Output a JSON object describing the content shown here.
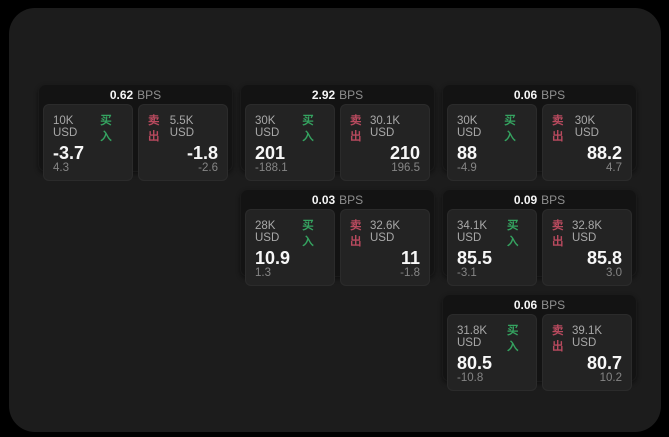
{
  "colors": {
    "panel": "#1c1c1c",
    "card": "#131313",
    "tile": "#232323",
    "buy": "#35a360",
    "sell": "#b84a5e"
  },
  "labels": {
    "bps": "BPS",
    "buy": "买入",
    "sell": "卖出"
  },
  "cards": [
    {
      "bps": "0.62",
      "buy": {
        "amount": "10K USD",
        "value": "-3.7",
        "sub": "4.3"
      },
      "sell": {
        "amount": "5.5K USD",
        "value": "-1.8",
        "sub": "-2.6"
      }
    },
    {
      "bps": "2.92",
      "buy": {
        "amount": "30K USD",
        "value": "201",
        "sub": "-188.1"
      },
      "sell": {
        "amount": "30.1K USD",
        "value": "210",
        "sub": "196.5"
      }
    },
    {
      "bps": "0.06",
      "buy": {
        "amount": "30K USD",
        "value": "88",
        "sub": "-4.9"
      },
      "sell": {
        "amount": "30K USD",
        "value": "88.2",
        "sub": "4.7"
      }
    },
    {
      "bps": "0.03",
      "buy": {
        "amount": "28K USD",
        "value": "10.9",
        "sub": "1.3"
      },
      "sell": {
        "amount": "32.6K USD",
        "value": "11",
        "sub": "-1.8"
      }
    },
    {
      "bps": "0.09",
      "buy": {
        "amount": "34.1K USD",
        "value": "85.5",
        "sub": "-3.1"
      },
      "sell": {
        "amount": "32.8K USD",
        "value": "85.8",
        "sub": "3.0"
      }
    },
    {
      "bps": "0.06",
      "buy": {
        "amount": "31.8K USD",
        "value": "80.5",
        "sub": "-10.8"
      },
      "sell": {
        "amount": "39.1K USD",
        "value": "80.7",
        "sub": "10.2"
      }
    }
  ]
}
